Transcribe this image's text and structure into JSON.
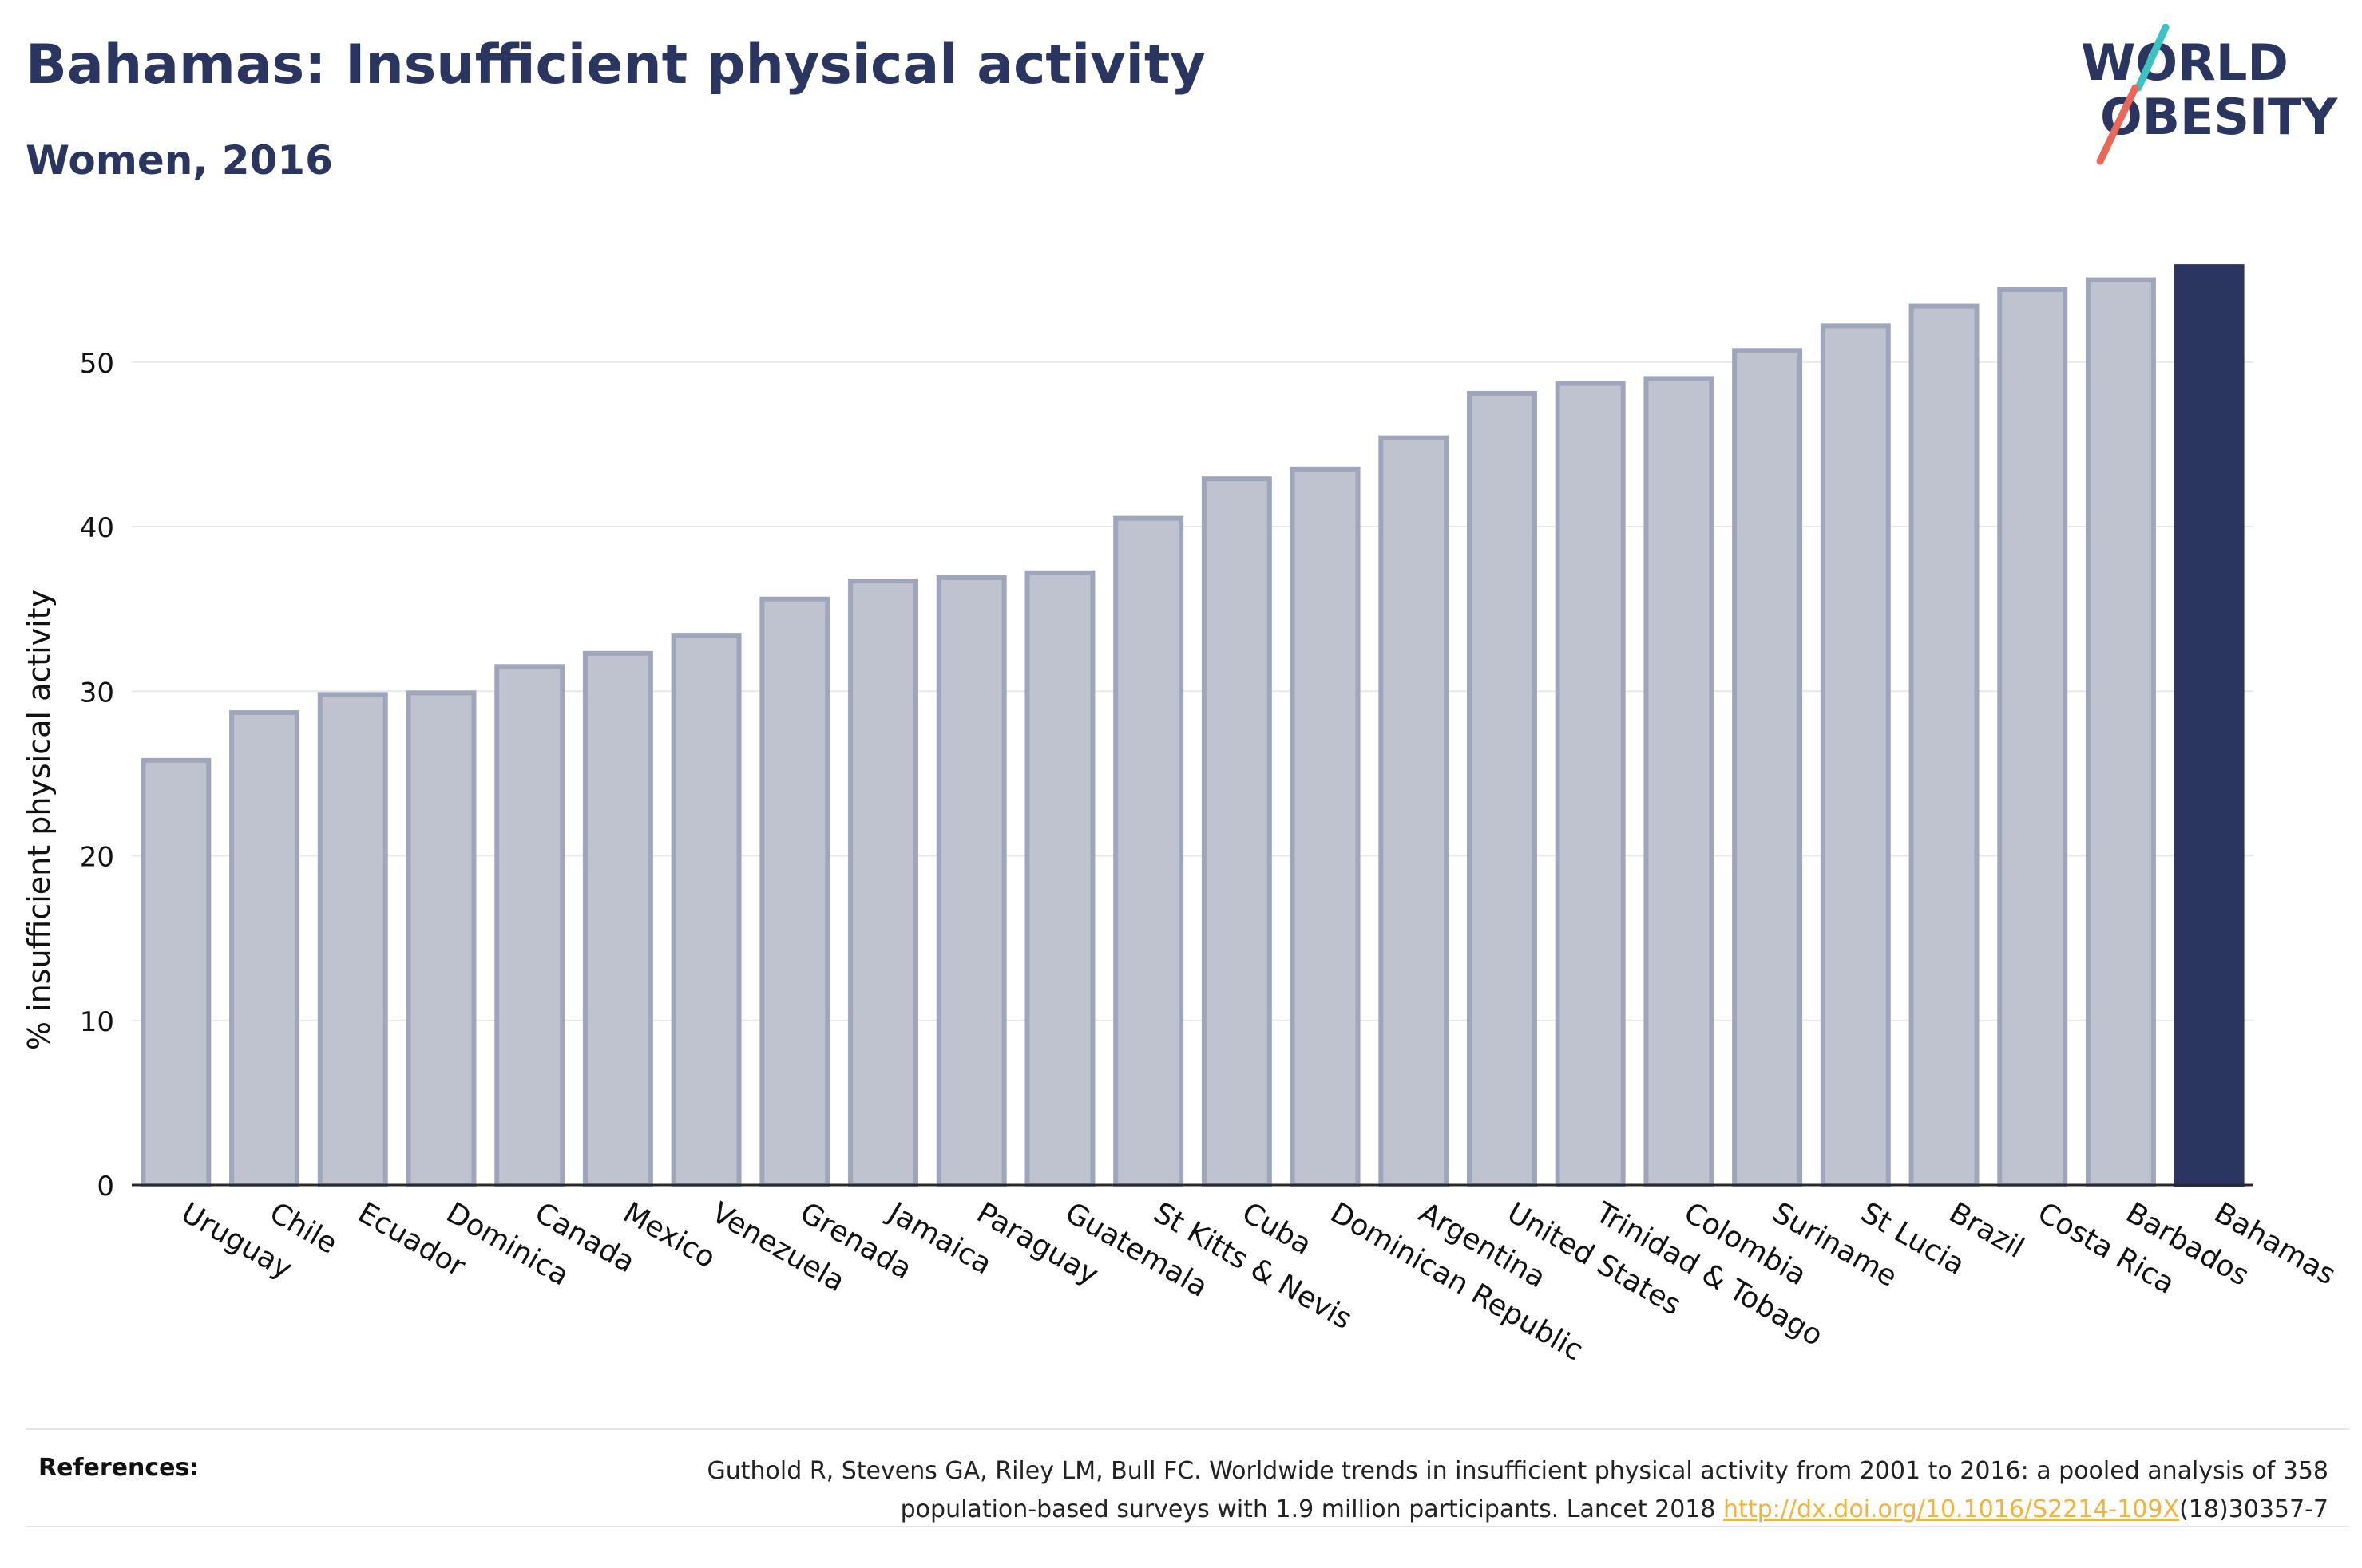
{
  "header": {
    "title": "Bahamas: Insufficient physical activity",
    "subtitle": "Women, 2016"
  },
  "logo": {
    "line1": "WORLD",
    "line2": "OBESITY",
    "text_color": "#2a3560",
    "slash_colors": [
      "#3ec1c1",
      "#e8685a"
    ]
  },
  "chart_data": {
    "type": "bar",
    "ylabel": "% insufficient physical activity",
    "ylim": [
      0,
      56
    ],
    "yticks": [
      0,
      10,
      20,
      30,
      40,
      50
    ],
    "grid": true,
    "highlight": "Bahamas",
    "colors": {
      "bar_fill": "#bfc3d0",
      "bar_stroke": "#9fa5bb",
      "highlight": "#2a3560"
    },
    "categories": [
      "Uruguay",
      "Chile",
      "Ecuador",
      "Dominica",
      "Canada",
      "Mexico",
      "Venezuela",
      "Grenada",
      "Jamaica",
      "Paraguay",
      "Guatemala",
      "St Kitts & Nevis",
      "Cuba",
      "Dominican Republic",
      "Argentina",
      "United States",
      "Trinidad & Tobago",
      "Colombia",
      "Suriname",
      "St Lucia",
      "Brazil",
      "Costa Rica",
      "Barbados",
      "Bahamas"
    ],
    "values": [
      25.8,
      28.7,
      29.8,
      29.9,
      31.5,
      32.3,
      33.4,
      35.6,
      36.7,
      36.9,
      37.2,
      40.5,
      42.9,
      43.5,
      45.4,
      48.1,
      48.7,
      49.0,
      50.7,
      52.2,
      53.4,
      54.4,
      55.0,
      55.8
    ]
  },
  "references": {
    "label": "References:",
    "text_part1": "Guthold R, Stevens GA, Riley LM, Bull FC. Worldwide trends in insufficient physical activity from 2001 to 2016: a pooled analysis of 358",
    "text_part2": "population-based surveys with 1.9 million participants. Lancet 2018 ",
    "link_text": "http://dx.doi.org/10.1016/S2214-109X",
    "text_part3": "(18)30357-7"
  }
}
